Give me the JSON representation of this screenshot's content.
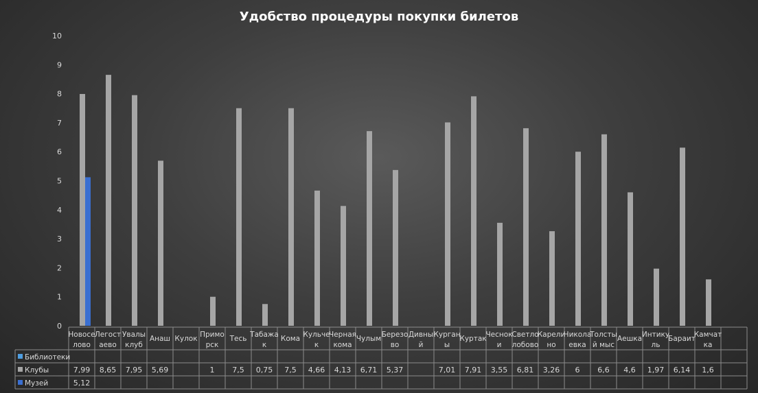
{
  "chart_data": {
    "type": "bar",
    "title": "Удобство процедуры покупки билетов",
    "xlabel": "",
    "ylabel": "",
    "ylim": [
      0,
      10
    ],
    "yticks": [
      0,
      1,
      2,
      3,
      4,
      5,
      6,
      7,
      8,
      9,
      10
    ],
    "grid": false,
    "legend": "data-table",
    "categories": [
      [
        "Новосе",
        "лово"
      ],
      [
        "Легост",
        "аево"
      ],
      [
        "Увалы",
        "клуб"
      ],
      [
        "Анаш"
      ],
      [
        "Кулок"
      ],
      [
        "Примо",
        "рск"
      ],
      [
        "Тесь"
      ],
      [
        "Табажа",
        "к"
      ],
      [
        "Кома"
      ],
      [
        "Кульче",
        "к"
      ],
      [
        "Черная",
        "кома"
      ],
      [
        "Чулым"
      ],
      [
        "Березо",
        "во"
      ],
      [
        "Дивны",
        "й"
      ],
      [
        "Курган",
        "ы"
      ],
      [
        "Куртак"
      ],
      [
        "Чеснок",
        "и"
      ],
      [
        "Светло",
        "лобово"
      ],
      [
        "Карели",
        "но"
      ],
      [
        "Никола",
        "евка"
      ],
      [
        "Толсты",
        "й мыс"
      ],
      [
        "Аешка"
      ],
      [
        "Интику",
        "ль"
      ],
      [
        "Бараит"
      ],
      [
        "Камчат",
        "ка"
      ],
      []
    ],
    "series": [
      {
        "name": "Библиотеки",
        "color": "#4f9ee0",
        "values": [
          null,
          null,
          null,
          null,
          null,
          null,
          null,
          null,
          null,
          null,
          null,
          null,
          null,
          null,
          null,
          null,
          null,
          null,
          null,
          null,
          null,
          null,
          null,
          null,
          null,
          null
        ],
        "labels": [
          "",
          "",
          "",
          "",
          "",
          "",
          "",
          "",
          "",
          "",
          "",
          "",
          "",
          "",
          "",
          "",
          "",
          "",
          "",
          "",
          "",
          "",
          "",
          "",
          "",
          ""
        ]
      },
      {
        "name": "Клубы",
        "color": "#a6a6a6",
        "values": [
          7.99,
          8.65,
          7.95,
          5.69,
          null,
          1,
          7.5,
          0.75,
          7.5,
          4.66,
          4.13,
          6.71,
          5.37,
          null,
          7.01,
          7.91,
          3.55,
          6.81,
          3.26,
          6,
          6.6,
          4.6,
          1.97,
          6.14,
          1.6,
          null
        ],
        "labels": [
          "7,99",
          "8,65",
          "7,95",
          "5,69",
          "",
          "1",
          "7,5",
          "0,75",
          "7,5",
          "4,66",
          "4,13",
          "6,71",
          "5,37",
          "",
          "7,01",
          "7,91",
          "3,55",
          "6,81",
          "3,26",
          "6",
          "6,6",
          "4,6",
          "1,97",
          "6,14",
          "1,6",
          ""
        ]
      },
      {
        "name": "Музей",
        "color": "#3a6fd1",
        "values": [
          5.12,
          null,
          null,
          null,
          null,
          null,
          null,
          null,
          null,
          null,
          null,
          null,
          null,
          null,
          null,
          null,
          null,
          null,
          null,
          null,
          null,
          null,
          null,
          null,
          null,
          null
        ],
        "labels": [
          "5,12",
          "",
          "",
          "",
          "",
          "",
          "",
          "",
          "",
          "",
          "",
          "",
          "",
          "",
          "",
          "",
          "",
          "",
          "",
          "",
          "",
          "",
          "",
          "",
          "",
          ""
        ]
      }
    ]
  }
}
